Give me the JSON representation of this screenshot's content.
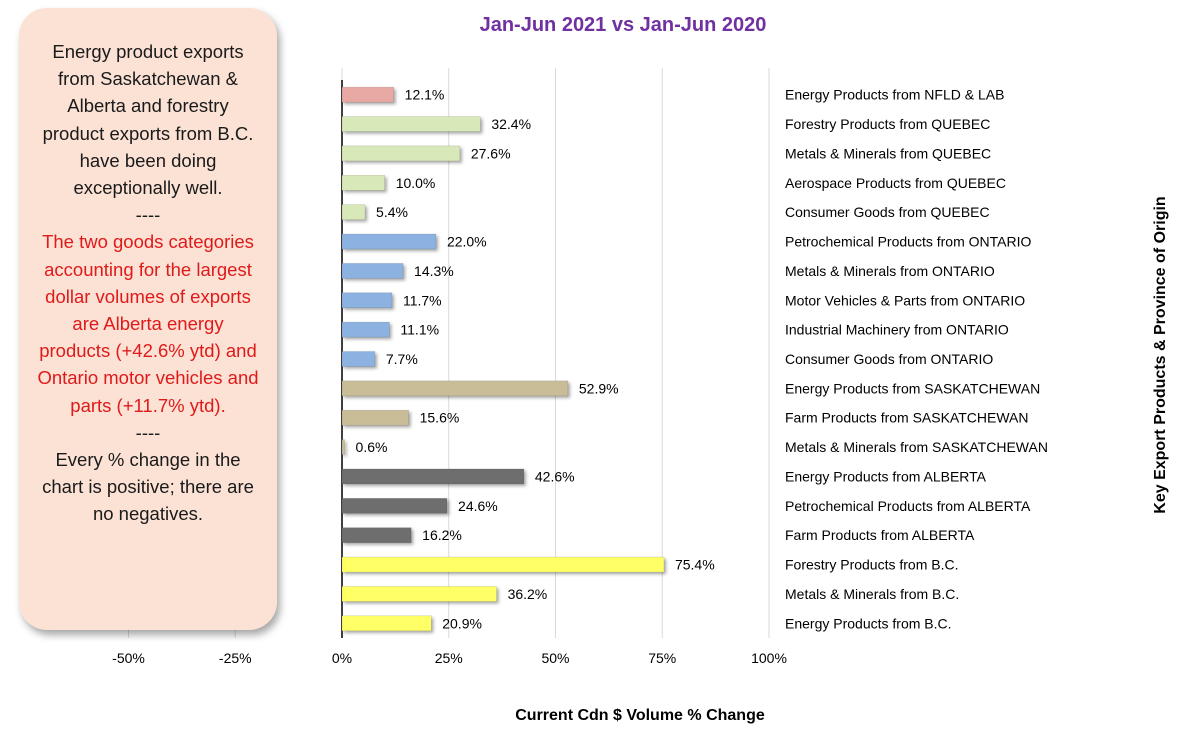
{
  "chart_data": {
    "type": "bar",
    "orientation": "horizontal",
    "title": "Jan-Jun 2021 vs Jan-Jun 2020",
    "xlabel": "Current Cdn $ Volume % Change",
    "ylabel": "Key Export Products & Province of Origin",
    "xlim": [
      -0.65,
      1.0
    ],
    "x_ticks": [
      "-50%",
      "-25%",
      "0%",
      "25%",
      "50%",
      "75%",
      "100%"
    ],
    "x_tick_values": [
      -0.5,
      -0.25,
      0,
      0.25,
      0.5,
      0.75,
      1.0
    ],
    "categories": [
      "Energy Products from NFLD & LAB",
      "Forestry Products from QUEBEC",
      "Metals & Minerals from QUEBEC",
      "Aerospace Products from QUEBEC",
      "Consumer Goods from QUEBEC",
      "Petrochemical Products from ONTARIO",
      "Metals & Minerals from ONTARIO",
      "Motor Vehicles & Parts from ONTARIO",
      "Industrial Machinery from ONTARIO",
      "Consumer Goods from ONTARIO",
      "Energy Products from SASKATCHEWAN",
      "Farm Products from SASKATCHEWAN",
      "Metals & Minerals from SASKATCHEWAN",
      "Energy Products from ALBERTA",
      "Petrochemical Products from ALBERTA",
      "Farm Products from ALBERTA",
      "Forestry Products from B.C.",
      "Metals & Minerals from B.C.",
      "Energy Products from B.C."
    ],
    "values": [
      0.121,
      0.324,
      0.276,
      0.1,
      0.054,
      0.22,
      0.143,
      0.117,
      0.111,
      0.077,
      0.529,
      0.156,
      0.006,
      0.426,
      0.246,
      0.162,
      0.754,
      0.362,
      0.209
    ],
    "value_labels": [
      "12.1%",
      "32.4%",
      "27.6%",
      "10.0%",
      "5.4%",
      "22.0%",
      "14.3%",
      "11.7%",
      "11.1%",
      "7.7%",
      "52.9%",
      "15.6%",
      "0.6%",
      "42.6%",
      "24.6%",
      "16.2%",
      "75.4%",
      "36.2%",
      "20.9%"
    ],
    "bar_colors": [
      "#e8a8a4",
      "#d8e8b8",
      "#d8e8b8",
      "#d8e8b8",
      "#d8e8b8",
      "#8cb2e2",
      "#8cb2e2",
      "#8cb2e2",
      "#8cb2e2",
      "#8cb2e2",
      "#c8bd97",
      "#c8bd97",
      "#c8bd97",
      "#6e6e6e",
      "#6e6e6e",
      "#6e6e6e",
      "#ffff66",
      "#ffff66",
      "#ffff66"
    ],
    "grid": true
  },
  "callout": {
    "paragraph1": "Energy product exports from Saskatchewan & Alberta and forestry product exports from B.C. have been doing exceptionally well.",
    "separator1": "----",
    "paragraph2": "The two goods categories accounting for the largest dollar volumes of exports are Alberta energy products (+42.6% ytd) and Ontario motor vehicles and parts (+11.7% ytd).",
    "separator2": "----",
    "paragraph3": "Every % change in the chart is positive; there are no negatives."
  }
}
